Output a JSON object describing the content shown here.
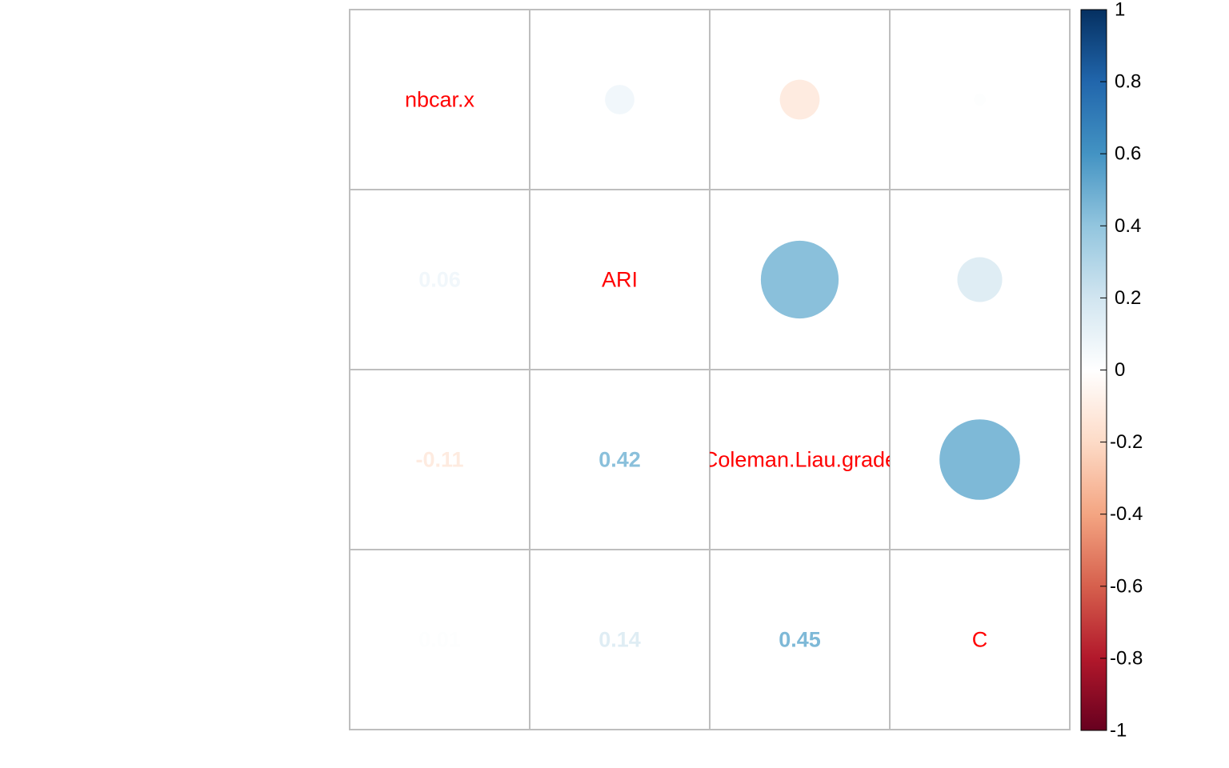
{
  "chart_data": {
    "type": "heatmap",
    "variables": [
      "nbcar.x",
      "ARI",
      "Coleman.Liau.grade",
      "C"
    ],
    "matrix": [
      [
        1,
        0.06,
        -0.11,
        0.01
      ],
      [
        0.06,
        1,
        0.42,
        0.14
      ],
      [
        -0.11,
        0.42,
        1,
        0.45
      ],
      [
        0.01,
        0.14,
        0.45,
        1
      ]
    ],
    "lower_labels": [
      {
        "row": 1,
        "col": 0,
        "text": "0.06"
      },
      {
        "row": 2,
        "col": 0,
        "text": "-0.11"
      },
      {
        "row": 2,
        "col": 1,
        "text": "0.42"
      },
      {
        "row": 3,
        "col": 0,
        "text": "0.01"
      },
      {
        "row": 3,
        "col": 1,
        "text": "0.14"
      },
      {
        "row": 3,
        "col": 2,
        "text": "0.45"
      }
    ],
    "upper_method": "circle",
    "lower_method": "number",
    "diagonal_label_color": "#FF0000",
    "grid": true,
    "grid_color": "#BEBEBE",
    "legend": {
      "position": "right",
      "range": [
        -1,
        1
      ],
      "ticks": [
        "1",
        "0.8",
        "0.6",
        "0.4",
        "0.2",
        "0",
        "-0.2",
        "-0.4",
        "-0.6",
        "-0.8",
        "-1"
      ],
      "palette": [
        "#67001F",
        "#B2182B",
        "#D6604D",
        "#F4A582",
        "#FDDBC7",
        "#FFFFFF",
        "#D1E5F0",
        "#92C5DE",
        "#4393C3",
        "#2166AC",
        "#053061"
      ]
    }
  }
}
